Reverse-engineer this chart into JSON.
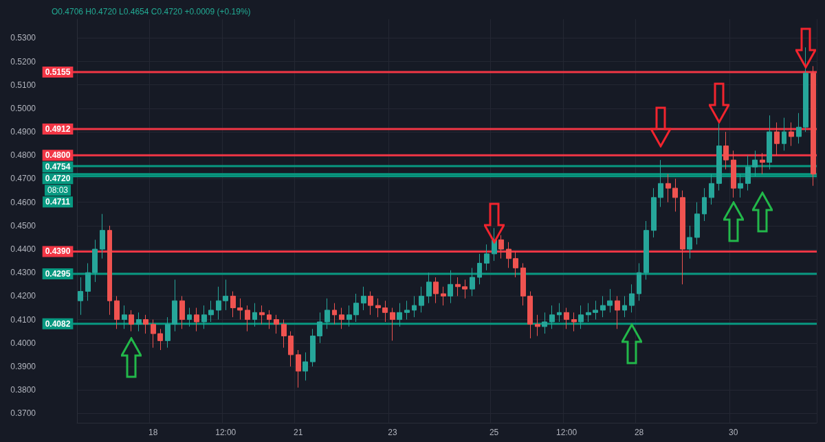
{
  "chart_data": {
    "type": "candlestick",
    "title": "O0.4706 H0.4720 L0.4654 C0.4720 +0.0009 (+0.19%)",
    "categories": [
      null,
      null,
      null,
      null,
      null,
      null,
      null,
      null,
      null,
      null,
      "18",
      null,
      null,
      null,
      null,
      null,
      null,
      null,
      null,
      null,
      "12:00",
      null,
      null,
      null,
      null,
      null,
      null,
      null,
      null,
      null,
      "21",
      null,
      null,
      null,
      null,
      null,
      null,
      null,
      null,
      null,
      null,
      null,
      null,
      "23",
      null,
      null,
      null,
      null,
      null,
      null,
      null,
      null,
      null,
      null,
      null,
      null,
      null,
      "25",
      null,
      null,
      null,
      null,
      null,
      null,
      null,
      null,
      null,
      "12:00",
      null,
      null,
      null,
      null,
      null,
      null,
      null,
      null,
      null,
      "28",
      null,
      null,
      null,
      null,
      null,
      null,
      null,
      null,
      null,
      null,
      null,
      null,
      "30",
      null,
      null,
      null,
      null,
      null,
      null,
      null,
      null,
      null,
      null,
      null
    ],
    "ohlc": [
      [
        0.418,
        0.428,
        0.412,
        0.422
      ],
      [
        0.422,
        0.434,
        0.418,
        0.43
      ],
      [
        0.43,
        0.444,
        0.426,
        0.44
      ],
      [
        0.44,
        0.455,
        0.436,
        0.448
      ],
      [
        0.448,
        0.45,
        0.412,
        0.418
      ],
      [
        0.418,
        0.42,
        0.406,
        0.41
      ],
      [
        0.41,
        0.416,
        0.406,
        0.412
      ],
      [
        0.412,
        0.414,
        0.405,
        0.408
      ],
      [
        0.408,
        0.413,
        0.405,
        0.41
      ],
      [
        0.41,
        0.412,
        0.404,
        0.408
      ],
      [
        0.408,
        0.41,
        0.398,
        0.404
      ],
      [
        0.404,
        0.406,
        0.397,
        0.401
      ],
      [
        0.401,
        0.411,
        0.398,
        0.408
      ],
      [
        0.408,
        0.427,
        0.405,
        0.418
      ],
      [
        0.418,
        0.42,
        0.406,
        0.41
      ],
      [
        0.41,
        0.415,
        0.407,
        0.412
      ],
      [
        0.412,
        0.415,
        0.405,
        0.409
      ],
      [
        0.409,
        0.416,
        0.406,
        0.412
      ],
      [
        0.412,
        0.418,
        0.409,
        0.414
      ],
      [
        0.414,
        0.424,
        0.41,
        0.418
      ],
      [
        0.418,
        0.427,
        0.414,
        0.42
      ],
      [
        0.42,
        0.422,
        0.411,
        0.415
      ],
      [
        0.415,
        0.419,
        0.41,
        0.414
      ],
      [
        0.414,
        0.416,
        0.405,
        0.41
      ],
      [
        0.41,
        0.417,
        0.407,
        0.413
      ],
      [
        0.413,
        0.416,
        0.408,
        0.412
      ],
      [
        0.412,
        0.414,
        0.406,
        0.41
      ],
      [
        0.41,
        0.412,
        0.404,
        0.408
      ],
      [
        0.408,
        0.41,
        0.398,
        0.403
      ],
      [
        0.403,
        0.405,
        0.39,
        0.395
      ],
      [
        0.395,
        0.397,
        0.381,
        0.388
      ],
      [
        0.388,
        0.396,
        0.384,
        0.392
      ],
      [
        0.392,
        0.406,
        0.39,
        0.403
      ],
      [
        0.403,
        0.413,
        0.4,
        0.409
      ],
      [
        0.409,
        0.419,
        0.406,
        0.414
      ],
      [
        0.414,
        0.417,
        0.408,
        0.412
      ],
      [
        0.412,
        0.415,
        0.406,
        0.41
      ],
      [
        0.41,
        0.416,
        0.407,
        0.412
      ],
      [
        0.412,
        0.421,
        0.409,
        0.417
      ],
      [
        0.417,
        0.424,
        0.414,
        0.42
      ],
      [
        0.42,
        0.422,
        0.412,
        0.416
      ],
      [
        0.416,
        0.419,
        0.411,
        0.415
      ],
      [
        0.415,
        0.418,
        0.409,
        0.413
      ],
      [
        0.413,
        0.415,
        0.401,
        0.41
      ],
      [
        0.41,
        0.417,
        0.407,
        0.413
      ],
      [
        0.413,
        0.418,
        0.41,
        0.414
      ],
      [
        0.414,
        0.42,
        0.411,
        0.416
      ],
      [
        0.416,
        0.424,
        0.413,
        0.42
      ],
      [
        0.42,
        0.43,
        0.417,
        0.426
      ],
      [
        0.426,
        0.428,
        0.417,
        0.421
      ],
      [
        0.421,
        0.424,
        0.416,
        0.42
      ],
      [
        0.42,
        0.431,
        0.417,
        0.425
      ],
      [
        0.425,
        0.428,
        0.42,
        0.424
      ],
      [
        0.424,
        0.427,
        0.419,
        0.423
      ],
      [
        0.423,
        0.432,
        0.42,
        0.428
      ],
      [
        0.428,
        0.438,
        0.425,
        0.434
      ],
      [
        0.434,
        0.442,
        0.431,
        0.438
      ],
      [
        0.438,
        0.449,
        0.435,
        0.444
      ],
      [
        0.444,
        0.446,
        0.436,
        0.44
      ],
      [
        0.44,
        0.443,
        0.432,
        0.436
      ],
      [
        0.436,
        0.439,
        0.428,
        0.432
      ],
      [
        0.432,
        0.434,
        0.416,
        0.42
      ],
      [
        0.42,
        0.422,
        0.402,
        0.408
      ],
      [
        0.408,
        0.412,
        0.403,
        0.407
      ],
      [
        0.407,
        0.413,
        0.404,
        0.409
      ],
      [
        0.409,
        0.416,
        0.406,
        0.412
      ],
      [
        0.412,
        0.417,
        0.409,
        0.413
      ],
      [
        0.413,
        0.415,
        0.406,
        0.41
      ],
      [
        0.41,
        0.413,
        0.405,
        0.409
      ],
      [
        0.409,
        0.416,
        0.406,
        0.412
      ],
      [
        0.412,
        0.417,
        0.409,
        0.413
      ],
      [
        0.413,
        0.418,
        0.41,
        0.414
      ],
      [
        0.414,
        0.42,
        0.411,
        0.416
      ],
      [
        0.416,
        0.423,
        0.413,
        0.418
      ],
      [
        0.418,
        0.42,
        0.406,
        0.414
      ],
      [
        0.414,
        0.42,
        0.411,
        0.416
      ],
      [
        0.416,
        0.425,
        0.413,
        0.421
      ],
      [
        0.421,
        0.434,
        0.418,
        0.43
      ],
      [
        0.43,
        0.452,
        0.427,
        0.448
      ],
      [
        0.448,
        0.466,
        0.445,
        0.462
      ],
      [
        0.462,
        0.478,
        0.458,
        0.468
      ],
      [
        0.468,
        0.472,
        0.46,
        0.466
      ],
      [
        0.466,
        0.47,
        0.456,
        0.462
      ],
      [
        0.462,
        0.465,
        0.425,
        0.44
      ],
      [
        0.44,
        0.45,
        0.436,
        0.445
      ],
      [
        0.445,
        0.46,
        0.442,
        0.455
      ],
      [
        0.455,
        0.466,
        0.452,
        0.462
      ],
      [
        0.462,
        0.472,
        0.459,
        0.468
      ],
      [
        0.468,
        0.494,
        0.465,
        0.484
      ],
      [
        0.484,
        0.49,
        0.474,
        0.478
      ],
      [
        0.478,
        0.482,
        0.462,
        0.466
      ],
      [
        0.466,
        0.472,
        0.462,
        0.468
      ],
      [
        0.468,
        0.48,
        0.465,
        0.475
      ],
      [
        0.475,
        0.482,
        0.471,
        0.478
      ],
      [
        0.478,
        0.481,
        0.472,
        0.477
      ],
      [
        0.477,
        0.497,
        0.474,
        0.49
      ],
      [
        0.49,
        0.494,
        0.48,
        0.485
      ],
      [
        0.485,
        0.496,
        0.482,
        0.49
      ],
      [
        0.49,
        0.494,
        0.484,
        0.488
      ],
      [
        0.488,
        0.498,
        0.485,
        0.492
      ],
      [
        0.492,
        0.526,
        0.49,
        0.515
      ],
      [
        0.515,
        0.518,
        0.467,
        0.472
      ]
    ],
    "ylim": [
      0.366,
      0.538
    ],
    "yticks": [
      {
        "value": 0.37,
        "label": "0.3700"
      },
      {
        "value": 0.38,
        "label": "0.3800"
      },
      {
        "value": 0.39,
        "label": "0.3900"
      },
      {
        "value": 0.4,
        "label": "0.4000"
      },
      {
        "value": 0.41,
        "label": "0.4100"
      },
      {
        "value": 0.42,
        "label": "0.4200"
      },
      {
        "value": 0.43,
        "label": "0.4300"
      },
      {
        "value": 0.44,
        "label": "0.4400"
      },
      {
        "value": 0.45,
        "label": "0.4500"
      },
      {
        "value": 0.46,
        "label": "0.4600"
      },
      {
        "value": 0.47,
        "label": "0.4700"
      },
      {
        "value": 0.48,
        "label": "0.4800"
      },
      {
        "value": 0.49,
        "label": "0.4900"
      },
      {
        "value": 0.5,
        "label": "0.5000"
      },
      {
        "value": 0.51,
        "label": "0.5100"
      },
      {
        "value": 0.52,
        "label": "0.5200"
      },
      {
        "value": 0.53,
        "label": "0.5300"
      }
    ],
    "ref_lines": [
      {
        "axis": "y",
        "value": 0.5155,
        "label": "0.5155",
        "color": "#f23645"
      },
      {
        "axis": "y",
        "value": 0.4912,
        "label": "0.4912",
        "color": "#f23645"
      },
      {
        "axis": "y",
        "value": 0.48,
        "label": "0.4800",
        "color": "#f23645"
      },
      {
        "axis": "y",
        "value": 0.4754,
        "label": "0.4754",
        "color": "#089981"
      },
      {
        "axis": "y",
        "value": 0.472,
        "label": "0.4720",
        "color": "#089981"
      },
      {
        "axis": "y",
        "value": 0.4711,
        "label": "0.4711",
        "color": "#089981"
      },
      {
        "axis": "y",
        "value": 0.439,
        "label": "0.4390",
        "color": "#f23645"
      },
      {
        "axis": "y",
        "value": 0.4295,
        "label": "0.4295",
        "color": "#089981"
      },
      {
        "axis": "y",
        "value": 0.4082,
        "label": "0.4082",
        "color": "#089981"
      }
    ],
    "annotations": [
      "08:03"
    ],
    "grid": true
  }
}
